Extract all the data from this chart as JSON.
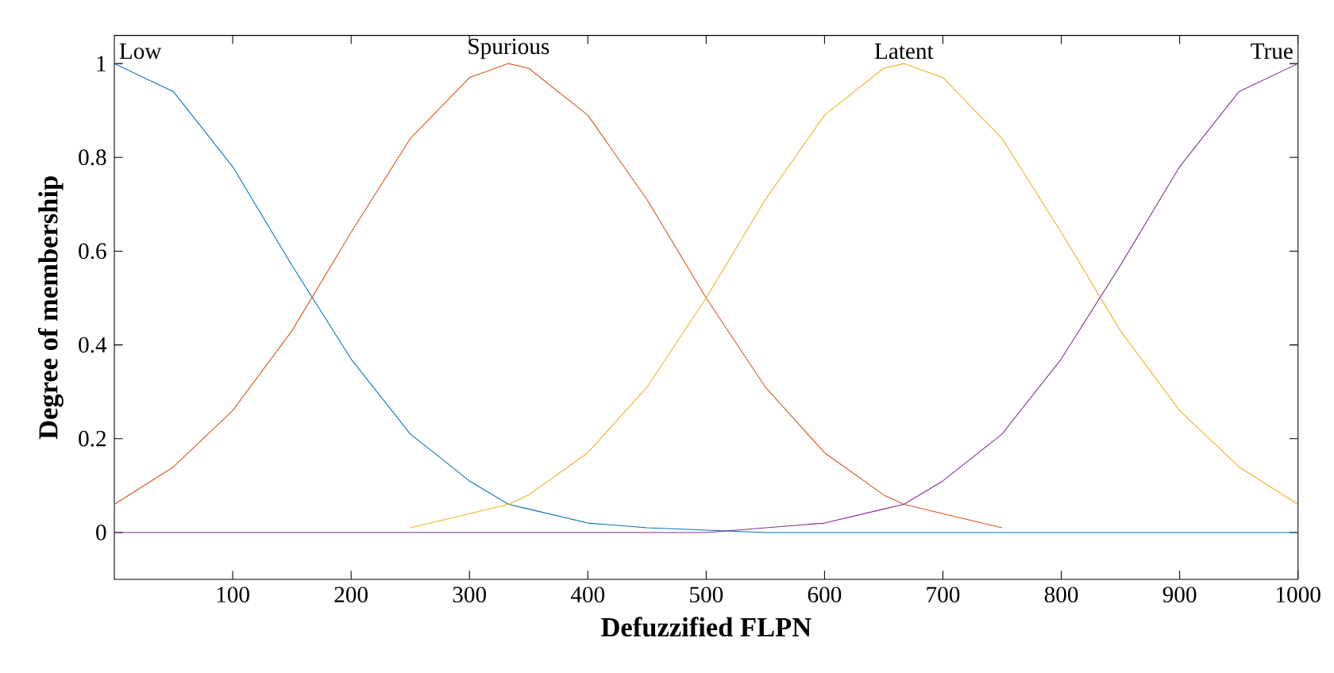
{
  "chart_data": {
    "type": "line",
    "xlabel": "Defuzzified FLPN",
    "ylabel": "Degree of membership",
    "x": [
      0,
      50,
      100,
      150,
      200,
      250,
      300,
      333,
      350,
      400,
      450,
      500,
      550,
      600,
      650,
      667,
      700,
      750,
      800,
      850,
      900,
      950,
      1000
    ],
    "series": [
      {
        "name": "Low",
        "color": "#0072bd",
        "values": [
          1,
          0.94,
          0.78,
          0.57,
          0.37,
          0.21,
          0.11,
          0.06,
          0.05,
          0.02,
          0.01,
          null,
          0,
          0,
          0,
          0,
          0,
          0,
          0,
          0,
          0,
          0,
          0
        ]
      },
      {
        "name": "Spurious",
        "color": "#d95319",
        "values": [
          0.06,
          0.14,
          0.26,
          0.43,
          0.64,
          0.84,
          0.97,
          1,
          0.99,
          0.89,
          0.71,
          0.5,
          0.31,
          0.17,
          0.08,
          0.06,
          0.04,
          0.01,
          null,
          null,
          null,
          null,
          null
        ]
      },
      {
        "name": "Latent",
        "color": "#edb120",
        "values": [
          null,
          null,
          null,
          null,
          null,
          0.01,
          0.04,
          0.06,
          0.08,
          0.17,
          0.31,
          0.5,
          0.71,
          0.89,
          0.99,
          1,
          0.97,
          0.84,
          0.64,
          0.43,
          0.26,
          0.14,
          0.06
        ]
      },
      {
        "name": "True",
        "color": "#7e2f8e",
        "values": [
          0,
          0,
          0,
          0,
          0,
          0,
          0,
          0,
          0,
          0,
          0,
          0,
          0.01,
          0.02,
          0.05,
          0.06,
          0.11,
          0.21,
          0.37,
          0.57,
          0.78,
          0.94,
          1
        ]
      }
    ],
    "xlim": [
      0,
      1000
    ],
    "ylim": [
      -0.1,
      1.06
    ],
    "xticks": [
      100,
      200,
      300,
      400,
      500,
      600,
      700,
      800,
      900,
      1000
    ],
    "yticks": [
      0,
      0.2,
      0.4,
      0.6,
      0.8,
      1
    ],
    "grid": false,
    "legend": false,
    "marker": "none",
    "line_style": "solid"
  }
}
